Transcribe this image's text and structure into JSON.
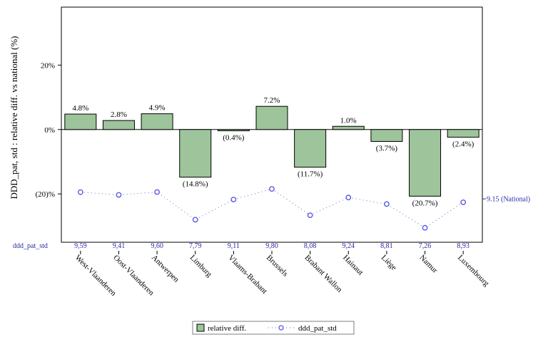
{
  "chart_data": {
    "type": "bar",
    "ylabel": "DDD_pat, std : relative diff. vs national (%)",
    "categories": [
      "West-Vlaanderen",
      "Oost-Vlaanderen",
      "Antwerpen",
      "Limburg",
      "Vlaams-Brabant",
      "Brussels",
      "Brabant Wallon",
      "Hainaut",
      "Liège",
      "Namur",
      "Luxembourg"
    ],
    "ylim": [
      -35,
      38
    ],
    "y_ticks": [
      -20,
      0,
      20
    ],
    "y_tick_labels": [
      "(20)%",
      "0%",
      "20%"
    ],
    "series": [
      {
        "name": "relative diff.",
        "type": "bar",
        "color": "#9dc49a",
        "values": [
          4.8,
          2.8,
          4.9,
          -14.8,
          -0.4,
          7.2,
          -11.7,
          1.0,
          -3.7,
          -20.7,
          -2.4
        ],
        "labels": [
          "4.8%",
          "2.8%",
          "4.9%",
          "(14.8%)",
          "(0.4%)",
          "7.2%",
          "(11.7%)",
          "1.0%",
          "(3.7%)",
          "(20.7%)",
          "(2.4%)"
        ]
      },
      {
        "name": "ddd_pat_std",
        "type": "line",
        "color": "#5a5ae0",
        "values": [
          9.59,
          9.41,
          9.6,
          7.79,
          9.11,
          9.8,
          8.08,
          9.24,
          8.81,
          7.26,
          8.93
        ],
        "labels": [
          "9,59",
          "9,41",
          "9,60",
          "7,79",
          "9,11",
          "9,80",
          "8,08",
          "9,24",
          "8,81",
          "7,26",
          "8,93"
        ]
      }
    ],
    "secondary_axis": {
      "range": [
        6.5,
        10.6
      ],
      "reference_value": 9.15,
      "reference_label": "9.15 (National)"
    },
    "row_label": "ddd_pat_std",
    "legend": {
      "position": "bottom-center",
      "items": [
        "relative diff.",
        "ddd_pat_std"
      ]
    },
    "grid": false
  }
}
